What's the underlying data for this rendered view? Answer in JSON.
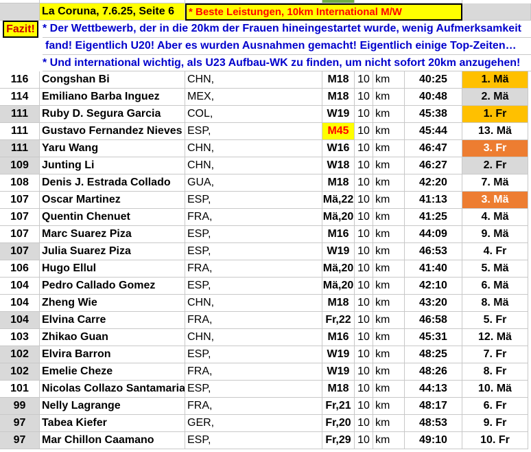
{
  "header": {
    "location": "La Coruna, 7.6.25, Seite 6",
    "subtitle": "* Beste Leistungen, 10km International M/W"
  },
  "fazit": {
    "label": "Fazit!",
    "lines": [
      "* Der Wettbewerb, der in die 20km der Frauen hineingestartet wurde, wenig Aufmerksamkeit",
      "fand! Eigentlich U20! Aber es wurden Ausnahmen gemacht! Eigentlich einige Top-Zeiten…",
      "* Und international wichtig, als U23 Aufbau-WK zu finden, um nicht sofort 20km anzugehen!"
    ]
  },
  "colors": {
    "gold": "#ffc000",
    "silver": "#d9d9d9",
    "bronze": "#ed7d31",
    "highlight": "#ffff00",
    "highlight_text": "#ff0000",
    "note_text": "#0000cc"
  },
  "rows": [
    {
      "score": "116",
      "name": "Congshan Bi",
      "nation": "CHN,",
      "cls": "M18",
      "dist": "10",
      "unit": "km",
      "time": "40:25",
      "rank": "1. Mä",
      "medal": "gold",
      "shade": false
    },
    {
      "score": "114",
      "name": "Emiliano Barba Inguez",
      "nation": "MEX,",
      "cls": "M18",
      "dist": "10",
      "unit": "km",
      "time": "40:48",
      "rank": "2. Mä",
      "medal": "silver",
      "shade": false
    },
    {
      "score": "111",
      "name": "Ruby D. Segura Garcia",
      "nation": "COL,",
      "cls": "W19",
      "dist": "10",
      "unit": "km",
      "time": "45:38",
      "rank": "1. Fr",
      "medal": "gold",
      "shade": true
    },
    {
      "score": "111",
      "name": "Gustavo Fernandez Nieves",
      "nation": "ESP,",
      "cls": "M45",
      "dist": "10",
      "unit": "km",
      "time": "45:44",
      "rank": "13. Mä",
      "medal": "",
      "shade": false,
      "cls_highlight": true
    },
    {
      "score": "111",
      "name": "Yaru Wang",
      "nation": "CHN,",
      "cls": "W16",
      "dist": "10",
      "unit": "km",
      "time": "46:47",
      "rank": "3. Fr",
      "medal": "bronze",
      "shade": true
    },
    {
      "score": "109",
      "name": "Junting Li",
      "nation": "CHN,",
      "cls": "W18",
      "dist": "10",
      "unit": "km",
      "time": "46:27",
      "rank": "2. Fr",
      "medal": "silver",
      "shade": true
    },
    {
      "score": "108",
      "name": "Denis J. Estrada Collado",
      "nation": "GUA,",
      "cls": "M18",
      "dist": "10",
      "unit": "km",
      "time": "42:20",
      "rank": "7. Mä",
      "medal": "",
      "shade": false
    },
    {
      "score": "107",
      "name": "Oscar Martinez",
      "nation": "ESP,",
      "cls": "Mä,22",
      "dist": "10",
      "unit": "km",
      "time": "41:13",
      "rank": "3. Mä",
      "medal": "bronze",
      "shade": false
    },
    {
      "score": "107",
      "name": "Quentin Chenuet",
      "nation": "FRA,",
      "cls": "Mä,20",
      "dist": "10",
      "unit": "km",
      "time": "41:25",
      "rank": "4. Mä",
      "medal": "",
      "shade": false
    },
    {
      "score": "107",
      "name": "Marc Suarez Piza",
      "nation": "ESP,",
      "cls": "M16",
      "dist": "10",
      "unit": "km",
      "time": "44:09",
      "rank": "9. Mä",
      "medal": "",
      "shade": false
    },
    {
      "score": "107",
      "name": "Julia Suarez Piza",
      "nation": "ESP,",
      "cls": "W19",
      "dist": "10",
      "unit": "km",
      "time": "46:53",
      "rank": "4. Fr",
      "medal": "",
      "shade": true
    },
    {
      "score": "106",
      "name": "Hugo Ellul",
      "nation": "FRA,",
      "cls": "Mä,20",
      "dist": "10",
      "unit": "km",
      "time": "41:40",
      "rank": "5. Mä",
      "medal": "",
      "shade": false
    },
    {
      "score": "104",
      "name": "Pedro Callado Gomez",
      "nation": "ESP,",
      "cls": "Mä,20",
      "dist": "10",
      "unit": "km",
      "time": "42:10",
      "rank": "6. Mä",
      "medal": "",
      "shade": false
    },
    {
      "score": "104",
      "name": "Zheng Wie",
      "nation": "CHN,",
      "cls": "M18",
      "dist": "10",
      "unit": "km",
      "time": "43:20",
      "rank": "8. Mä",
      "medal": "",
      "shade": false
    },
    {
      "score": "104",
      "name": "Elvina Carre",
      "nation": "FRA,",
      "cls": "Fr,22",
      "dist": "10",
      "unit": "km",
      "time": "46:58",
      "rank": "5. Fr",
      "medal": "",
      "shade": true
    },
    {
      "score": "103",
      "name": "Zhikao Guan",
      "nation": "CHN,",
      "cls": "M16",
      "dist": "10",
      "unit": "km",
      "time": "45:31",
      "rank": "12. Mä",
      "medal": "",
      "shade": false
    },
    {
      "score": "102",
      "name": "Elvira Barron",
      "nation": "ESP,",
      "cls": "W19",
      "dist": "10",
      "unit": "km",
      "time": "48:25",
      "rank": "7. Fr",
      "medal": "",
      "shade": true
    },
    {
      "score": "102",
      "name": "Emelie Cheze",
      "nation": "FRA,",
      "cls": "W19",
      "dist": "10",
      "unit": "km",
      "time": "48:26",
      "rank": "8. Fr",
      "medal": "",
      "shade": true
    },
    {
      "score": "101",
      "name": "Nicolas Collazo Santamaria",
      "nation": "ESP,",
      "cls": "M18",
      "dist": "10",
      "unit": "km",
      "time": "44:13",
      "rank": "10. Mä",
      "medal": "",
      "shade": false
    },
    {
      "score": "99",
      "name": "Nelly Lagrange",
      "nation": "FRA,",
      "cls": "Fr,21",
      "dist": "10",
      "unit": "km",
      "time": "48:17",
      "rank": "6. Fr",
      "medal": "",
      "shade": true
    },
    {
      "score": "97",
      "name": "Tabea Kiefer",
      "nation": "GER,",
      "cls": "Fr,20",
      "dist": "10",
      "unit": "km",
      "time": "48:53",
      "rank": "9. Fr",
      "medal": "",
      "shade": true
    },
    {
      "score": "97",
      "name": "Mar Chillon Caamano",
      "nation": "ESP,",
      "cls": "Fr,29",
      "dist": "10",
      "unit": "km",
      "time": "49:10",
      "rank": "10. Fr",
      "medal": "",
      "shade": true
    }
  ]
}
